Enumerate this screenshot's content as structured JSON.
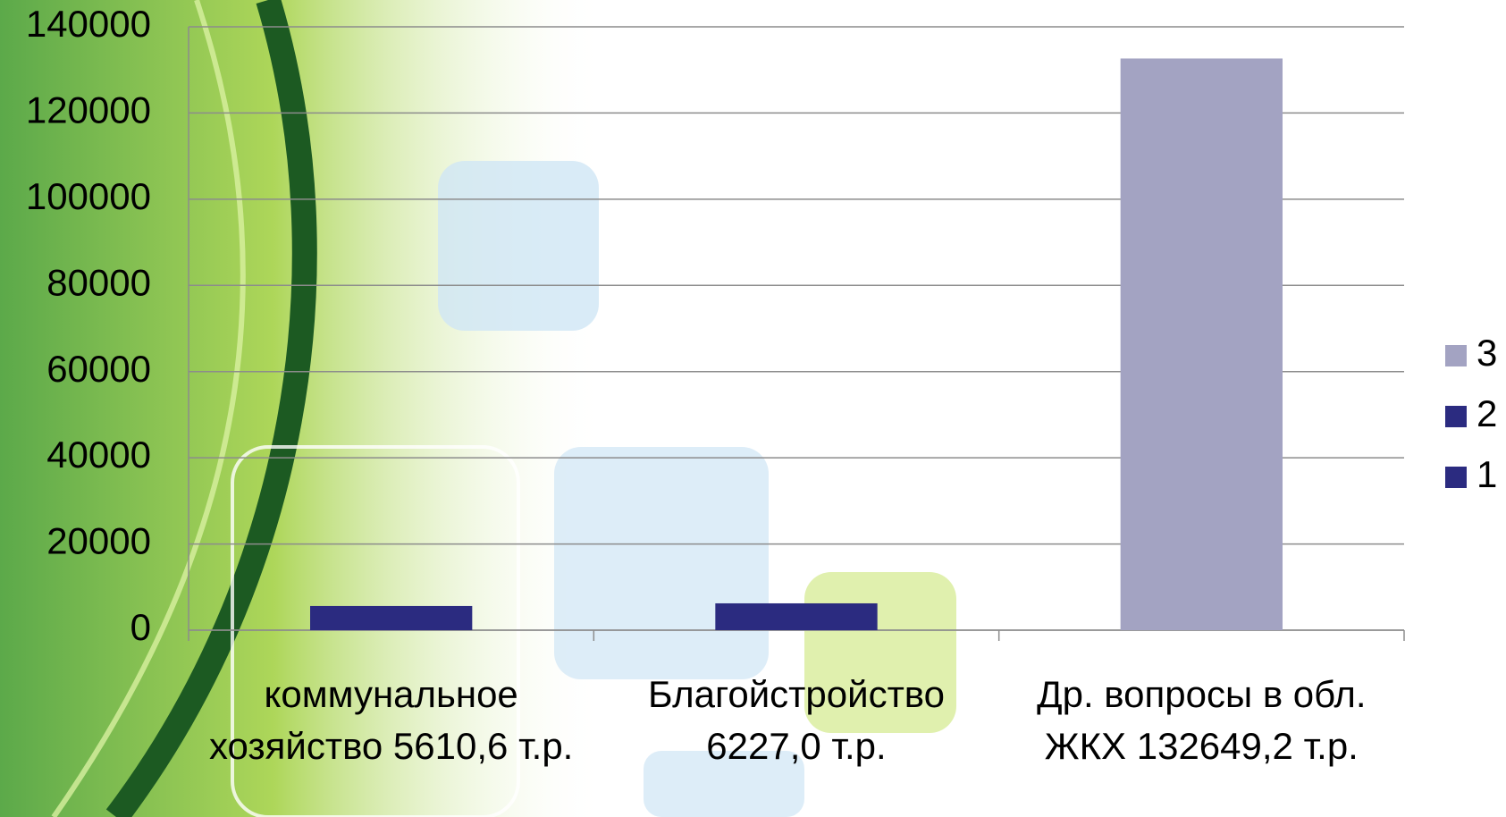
{
  "chart_data": {
    "type": "stacked_bar",
    "categories": [
      "коммунальное хозяйство 5610,6 т.р.",
      "Благойстройство 6227,0 т.р.",
      "Др. вопросы в обл. ЖКХ 132649,2 т.р."
    ],
    "series": [
      {
        "name": "1",
        "color": "#2b2b80",
        "values": [
          5610.6,
          null,
          null
        ]
      },
      {
        "name": "2",
        "color": "#2b2b80",
        "values": [
          null,
          6227.0,
          null
        ]
      },
      {
        "name": "3",
        "color": "#a3a3c2",
        "values": [
          null,
          null,
          132649.2
        ]
      }
    ],
    "ylim": [
      0,
      140000
    ],
    "yticks": [
      0,
      20000,
      40000,
      60000,
      80000,
      100000,
      120000,
      140000
    ],
    "grid": true,
    "legend": "right"
  }
}
